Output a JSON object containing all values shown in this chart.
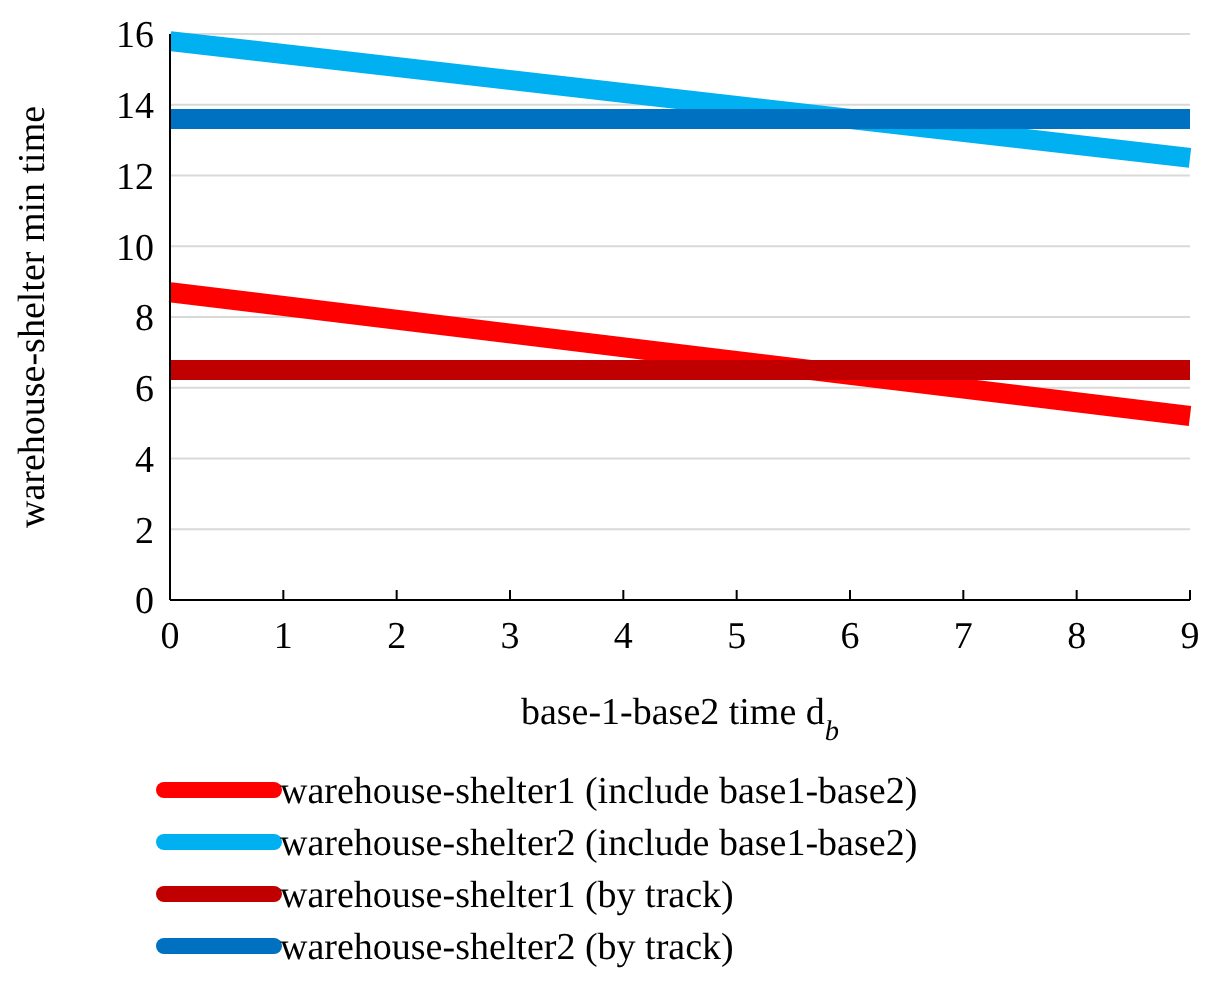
{
  "chart_data": {
    "type": "line",
    "xlabel": "base-1-base2 time d$_{b}$",
    "ylabel": "warehouse-shelter min time",
    "x": [
      0,
      9
    ],
    "xlim": [
      0,
      9
    ],
    "xticks": [
      0,
      1,
      2,
      3,
      4,
      5,
      6,
      7,
      8,
      9
    ],
    "ylim": [
      0,
      16
    ],
    "yticks": [
      0,
      2,
      4,
      6,
      8,
      10,
      12,
      14,
      16
    ],
    "grid": "y",
    "legend": "bottom",
    "line_style": "solid",
    "series": [
      {
        "name": "warehouse-shelter1 (include base1-base2)",
        "color": "#ff0000",
        "values": [
          8.7,
          5.2
        ]
      },
      {
        "name": "warehouse-shelter2 (include base1-base2)",
        "color": "#00b0f0",
        "values": [
          15.8,
          12.5
        ]
      },
      {
        "name": "warehouse-shelter1 (by track)",
        "color": "#c00000",
        "values": [
          6.5,
          6.5
        ]
      },
      {
        "name": "warehouse-shelter2 (by track)",
        "color": "#0070c0",
        "values": [
          13.6,
          13.6
        ]
      }
    ]
  }
}
